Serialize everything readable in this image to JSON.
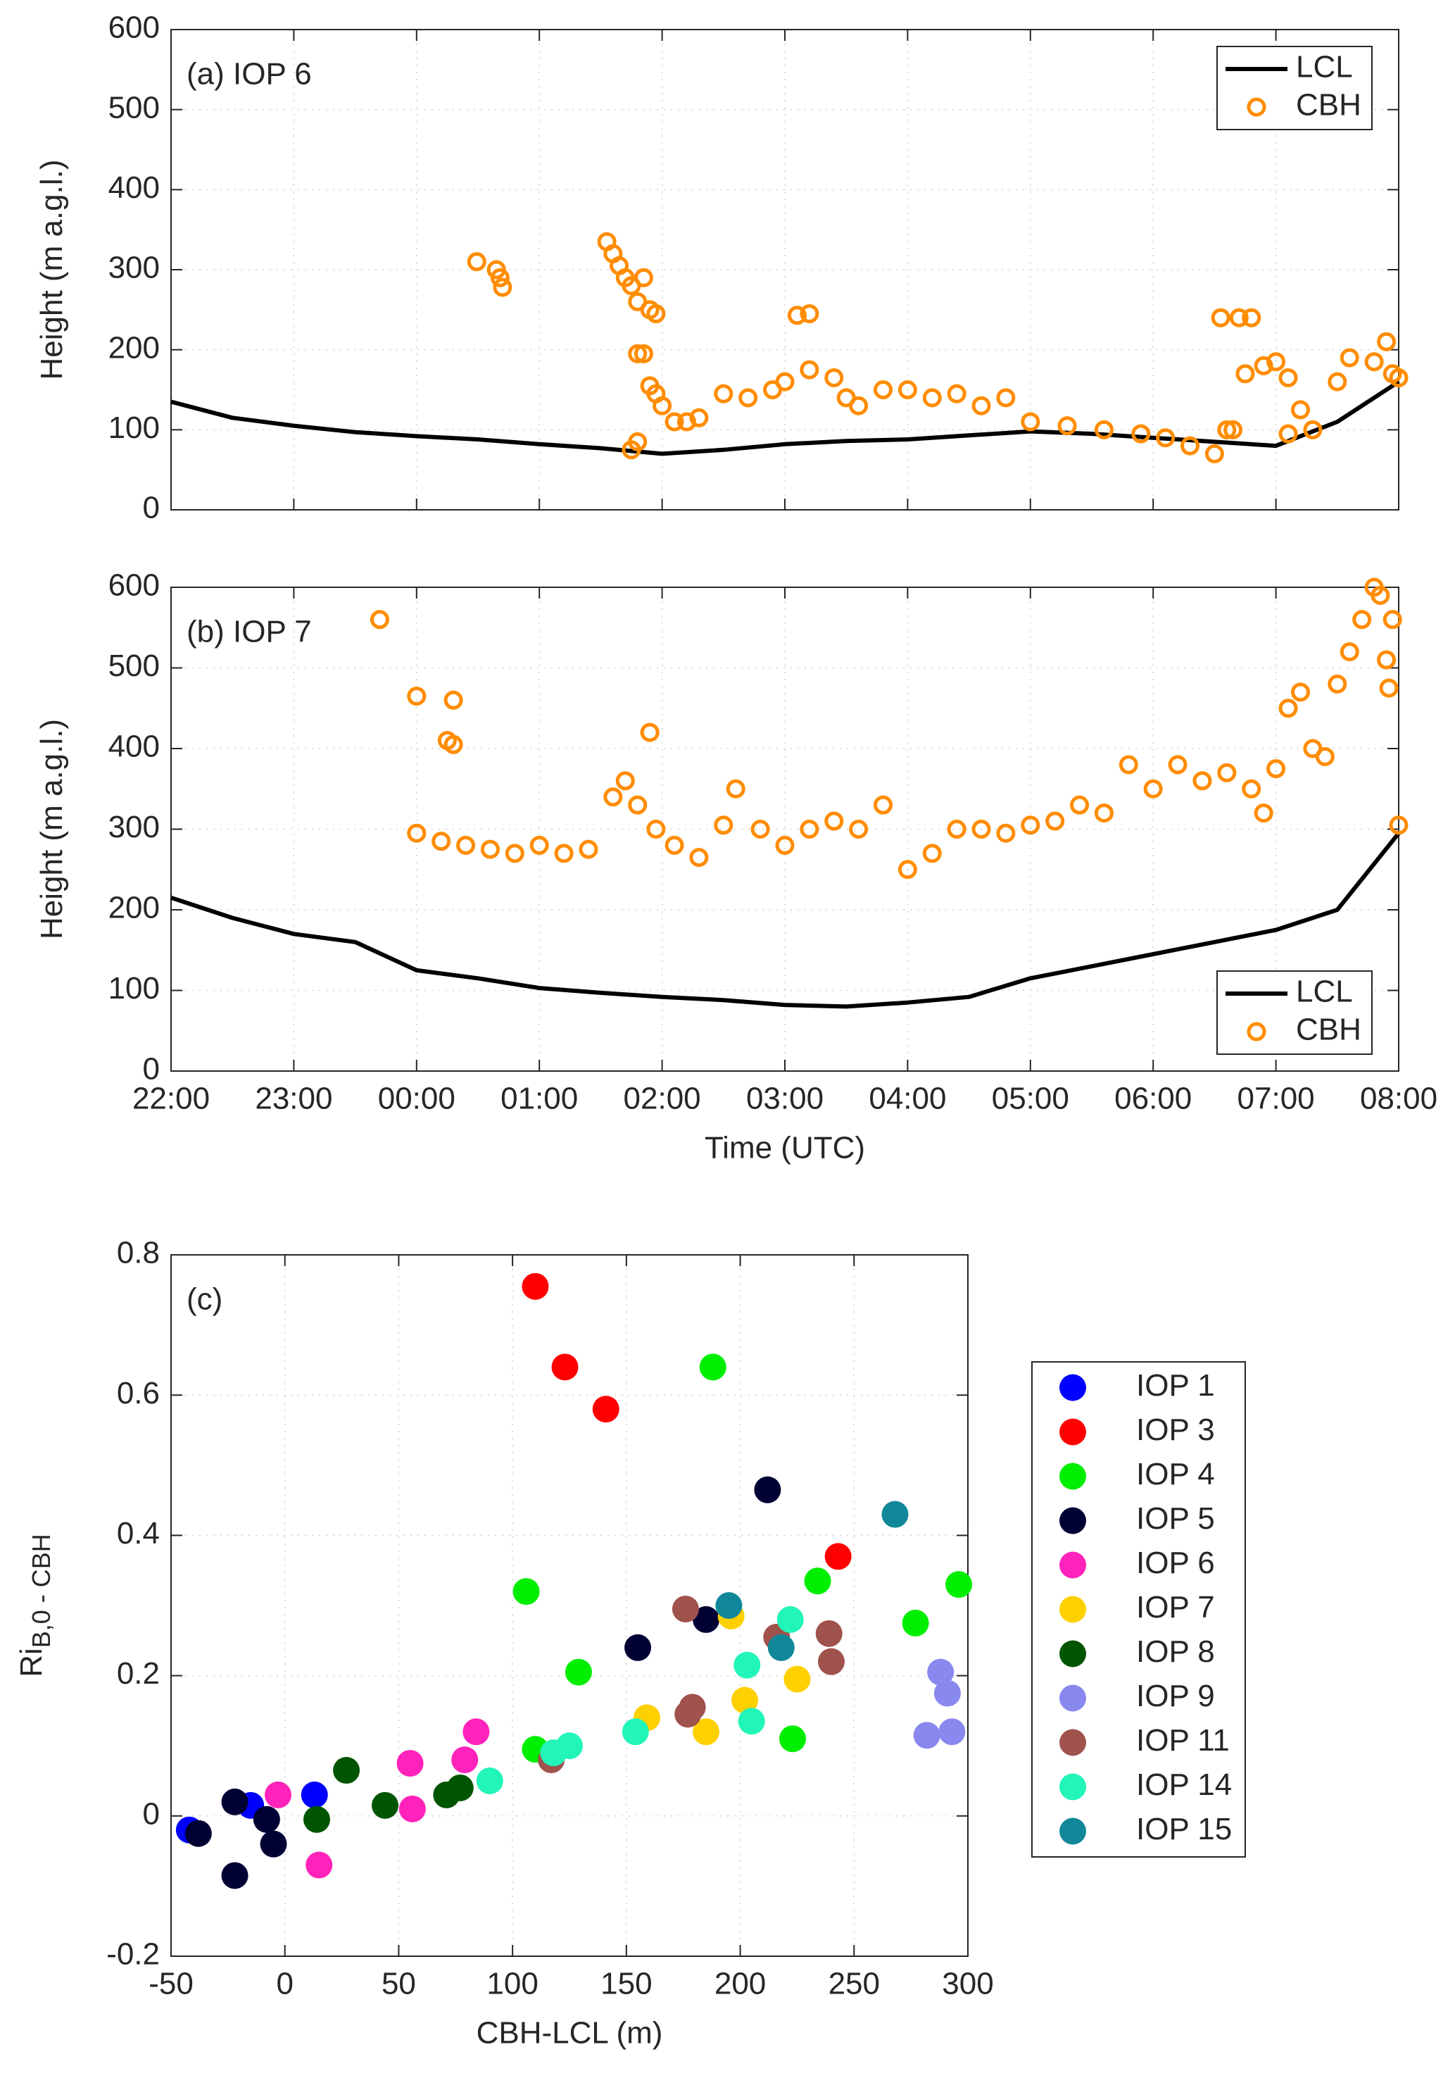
{
  "chart_data": [
    {
      "type": "line",
      "annotation": "(a) IOP 6",
      "ylabel": "Height (m a.g.l.)",
      "xlim": [
        22,
        32
      ],
      "xticks": [
        22,
        23,
        24,
        25,
        26,
        27,
        28,
        29,
        30,
        31,
        32
      ],
      "xtick_labels": false,
      "ylim": [
        0,
        600
      ],
      "yticks": [
        0,
        100,
        200,
        300,
        400,
        500,
        600
      ],
      "grid": true,
      "legend": "upper right",
      "series": [
        {
          "name": "LCL",
          "color": "#000000",
          "mode": "line",
          "x": [
            22,
            22.5,
            23,
            23.5,
            24,
            24.5,
            25,
            25.5,
            26,
            26.5,
            27,
            27.5,
            28,
            28.5,
            29,
            29.5,
            30,
            30.5,
            31,
            31.5,
            32
          ],
          "values": [
            135,
            115,
            105,
            97,
            92,
            88,
            82,
            77,
            70,
            75,
            82,
            86,
            88,
            93,
            98,
            95,
            90,
            85,
            80,
            110,
            160
          ]
        },
        {
          "name": "CBH",
          "color": "#ff8c00",
          "mode": "open-marker",
          "x": [
            24.49,
            24.65,
            24.68,
            24.7,
            25.55,
            25.6,
            25.65,
            25.7,
            25.75,
            25.8,
            25.85,
            25.9,
            25.95,
            25.8,
            25.85,
            25.9,
            25.95,
            25.75,
            25.8,
            26.0,
            26.1,
            26.2,
            26.3,
            26.5,
            26.7,
            26.9,
            27.0,
            27.1,
            27.2,
            27.2,
            27.4,
            27.5,
            27.6,
            27.8,
            28.0,
            28.2,
            28.4,
            28.6,
            28.8,
            29.0,
            29.3,
            29.6,
            29.9,
            30.1,
            30.3,
            30.5,
            30.55,
            30.6,
            30.65,
            30.7,
            30.75,
            30.8,
            30.9,
            31.0,
            31.1,
            31.1,
            31.2,
            31.3,
            31.5,
            31.6,
            31.8,
            31.9,
            31.95,
            32.0
          ],
          "values": [
            310,
            300,
            290,
            278,
            335,
            320,
            305,
            290,
            280,
            260,
            290,
            250,
            245,
            195,
            195,
            155,
            145,
            75,
            85,
            130,
            110,
            110,
            115,
            145,
            140,
            150,
            160,
            243,
            245,
            175,
            165,
            140,
            130,
            150,
            150,
            140,
            145,
            130,
            140,
            110,
            105,
            100,
            95,
            90,
            80,
            70,
            240,
            100,
            100,
            240,
            170,
            240,
            180,
            185,
            165,
            95,
            125,
            100,
            160,
            190,
            185,
            210,
            170,
            165
          ]
        }
      ]
    },
    {
      "type": "line",
      "annotation": "(b) IOP 7",
      "ylabel": "Height (m a.g.l.)",
      "xlabel": "Time (UTC)",
      "xlim": [
        22,
        32
      ],
      "xticks": [
        {
          "value": 22,
          "label": "22:00"
        },
        {
          "value": 23,
          "label": "23:00"
        },
        {
          "value": 24,
          "label": "00:00"
        },
        {
          "value": 25,
          "label": "01:00"
        },
        {
          "value": 26,
          "label": "02:00"
        },
        {
          "value": 27,
          "label": "03:00"
        },
        {
          "value": 28,
          "label": "04:00"
        },
        {
          "value": 29,
          "label": "05:00"
        },
        {
          "value": 30,
          "label": "06:00"
        },
        {
          "value": 31,
          "label": "07:00"
        },
        {
          "value": 32,
          "label": "08:00"
        }
      ],
      "ylim": [
        0,
        600
      ],
      "yticks": [
        0,
        100,
        200,
        300,
        400,
        500,
        600
      ],
      "grid": true,
      "legend": "lower right",
      "series": [
        {
          "name": "LCL",
          "color": "#000000",
          "mode": "line",
          "x": [
            22,
            22.5,
            23,
            23.5,
            24,
            24.5,
            25,
            25.5,
            26,
            26.5,
            27,
            27.5,
            28,
            28.5,
            29,
            29.5,
            30,
            30.5,
            31,
            31.5,
            32
          ],
          "values": [
            215,
            190,
            170,
            160,
            125,
            115,
            103,
            97,
            92,
            88,
            82,
            80,
            85,
            92,
            115,
            130,
            145,
            160,
            175,
            200,
            295
          ]
        },
        {
          "name": "CBH",
          "color": "#ff8c00",
          "mode": "open-marker",
          "x": [
            23.7,
            24.0,
            24.3,
            24.25,
            24.3,
            24.0,
            24.2,
            24.4,
            24.6,
            24.8,
            25.0,
            25.2,
            25.4,
            25.6,
            25.7,
            25.8,
            25.9,
            25.95,
            26.1,
            26.3,
            26.5,
            26.6,
            26.8,
            27.0,
            27.2,
            27.4,
            27.6,
            27.8,
            28.0,
            28.2,
            28.4,
            28.6,
            28.8,
            29.0,
            29.2,
            29.4,
            29.6,
            29.8,
            30.0,
            30.2,
            30.4,
            30.6,
            30.8,
            30.9,
            31.0,
            31.1,
            31.2,
            31.3,
            31.4,
            31.5,
            31.6,
            31.7,
            31.8,
            31.85,
            31.9,
            31.95,
            31.92,
            32.0
          ],
          "values": [
            560,
            465,
            460,
            410,
            405,
            295,
            285,
            280,
            275,
            270,
            280,
            270,
            275,
            340,
            360,
            330,
            420,
            300,
            280,
            265,
            305,
            350,
            300,
            280,
            300,
            310,
            300,
            330,
            250,
            270,
            300,
            300,
            295,
            305,
            310,
            330,
            320,
            380,
            350,
            380,
            360,
            370,
            350,
            320,
            375,
            450,
            470,
            400,
            390,
            480,
            520,
            560,
            600,
            590,
            510,
            560,
            475,
            305
          ]
        }
      ]
    },
    {
      "type": "scatter",
      "annotation": "(c)",
      "ylabel": "Ri",
      "ylabel_sub": "B,0 - CBH",
      "xlabel": "CBH-LCL (m)",
      "xlim": [
        -50,
        300
      ],
      "xticks": [
        -50,
        0,
        50,
        100,
        150,
        200,
        250,
        300
      ],
      "ylim": [
        -0.2,
        0.8
      ],
      "yticks": [
        -0.2,
        0,
        0.2,
        0.4,
        0.6,
        0.8
      ],
      "grid": true,
      "legend": "outside right",
      "series": [
        {
          "name": "IOP 1",
          "color": "#0000ff",
          "x": [
            -42,
            -15,
            13
          ],
          "values": [
            -0.02,
            0.015,
            0.03
          ]
        },
        {
          "name": "IOP 3",
          "color": "#ff0000",
          "x": [
            110,
            123,
            141,
            243
          ],
          "values": [
            0.755,
            0.64,
            0.58,
            0.37
          ]
        },
        {
          "name": "IOP 4",
          "color": "#00ee00",
          "x": [
            188,
            106,
            129,
            110,
            234,
            296,
            277,
            223
          ],
          "values": [
            0.64,
            0.32,
            0.205,
            0.095,
            0.335,
            0.33,
            0.275,
            0.11
          ]
        },
        {
          "name": "IOP 5",
          "color": "#000033",
          "x": [
            212,
            155,
            185,
            -38,
            -22,
            -8,
            -5,
            -22
          ],
          "values": [
            0.465,
            0.24,
            0.28,
            -0.025,
            0.02,
            -0.005,
            -0.04,
            -0.085
          ]
        },
        {
          "name": "IOP 6",
          "color": "#ff22bb",
          "x": [
            -3,
            15,
            55,
            56,
            84,
            79
          ],
          "values": [
            0.03,
            -0.07,
            0.075,
            0.01,
            0.12,
            0.08
          ]
        },
        {
          "name": "IOP 7",
          "color": "#ffd000",
          "x": [
            196,
            225,
            202,
            159,
            185
          ],
          "values": [
            0.285,
            0.195,
            0.165,
            0.14,
            0.12
          ]
        },
        {
          "name": "IOP 8",
          "color": "#005500",
          "x": [
            27,
            44,
            71,
            77,
            14
          ],
          "values": [
            0.065,
            0.015,
            0.03,
            0.04,
            -0.005
          ]
        },
        {
          "name": "IOP 9",
          "color": "#8888ee",
          "x": [
            288,
            291,
            282,
            293
          ],
          "values": [
            0.205,
            0.175,
            0.115,
            0.12
          ]
        },
        {
          "name": "IOP 11",
          "color": "#a0524d",
          "x": [
            176,
            177,
            179,
            216,
            239,
            240,
            117
          ],
          "values": [
            0.295,
            0.145,
            0.155,
            0.255,
            0.26,
            0.22,
            0.08
          ]
        },
        {
          "name": "IOP 14",
          "color": "#22f5b8",
          "x": [
            90,
            118,
            125,
            154,
            203,
            222,
            205
          ],
          "values": [
            0.05,
            0.09,
            0.1,
            0.12,
            0.215,
            0.28,
            0.135
          ]
        },
        {
          "name": "IOP 15",
          "color": "#118899",
          "x": [
            268,
            195,
            218
          ],
          "values": [
            0.43,
            0.3,
            0.24
          ]
        }
      ]
    }
  ]
}
